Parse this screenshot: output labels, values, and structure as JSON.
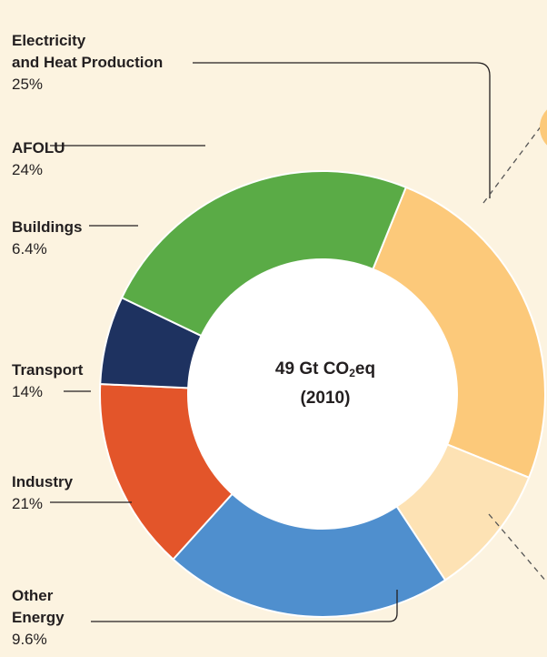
{
  "chart_data": {
    "type": "pie",
    "donut": true,
    "title": "49 Gt CO2eq (2010)",
    "center_label": {
      "line1_prefix": "49 Gt CO",
      "line1_sub": "2",
      "line1_suffix": "eq",
      "line2": "(2010)"
    },
    "slices": [
      {
        "name_lines": [
          "Electricity",
          "and Heat Production"
        ],
        "value_label": "25%",
        "value": 25,
        "color": "#fcc97a"
      },
      {
        "name_lines": [
          "Other",
          "Energy"
        ],
        "value_label": "9.6%",
        "value": 9.6,
        "color": "#fde2b4"
      },
      {
        "name_lines": [
          "Industry"
        ],
        "value_label": "21%",
        "value": 21,
        "color": "#4f8fce"
      },
      {
        "name_lines": [
          "Transport"
        ],
        "value_label": "14%",
        "value": 14,
        "color": "#e3552a"
      },
      {
        "name_lines": [
          "Buildings"
        ],
        "value_label": "6.4%",
        "value": 6.4,
        "color": "#1e3260"
      },
      {
        "name_lines": [
          "AFOLU"
        ],
        "value_label": "24%",
        "value": 24,
        "color": "#5aab46"
      }
    ]
  }
}
